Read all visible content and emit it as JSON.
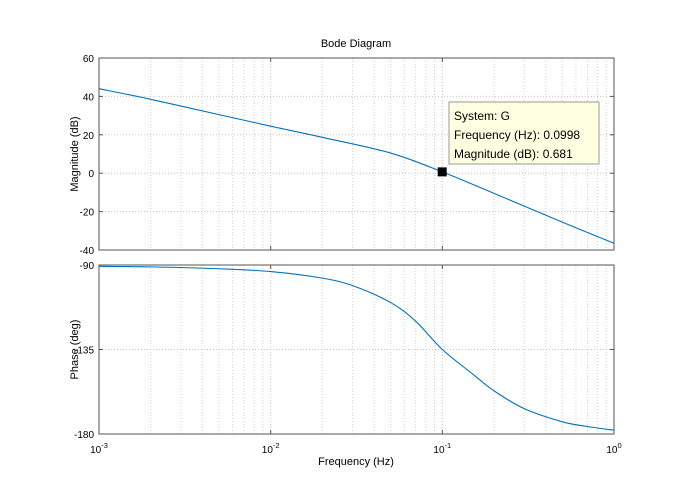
{
  "chart_data": {
    "type": "line",
    "title": "Bode Diagram",
    "xlabel": "Frequency  (Hz)",
    "x_scale": "log",
    "xlim": [
      0.001,
      1
    ],
    "x_ticks": [
      {
        "value": 0.001,
        "base": "10",
        "exp": "-3"
      },
      {
        "value": 0.01,
        "base": "10",
        "exp": "-2"
      },
      {
        "value": 0.1,
        "base": "10",
        "exp": "-1"
      },
      {
        "value": 1,
        "base": "10",
        "exp": "0"
      }
    ],
    "grid": true,
    "series_color": "#0072bd",
    "panels": [
      {
        "id": "magnitude",
        "ylabel": "Magnitude (dB)",
        "ylim": [
          -40,
          60
        ],
        "y_ticks": [
          "60",
          "40",
          "20",
          "0",
          "-20",
          "-40"
        ],
        "y_tick_values": [
          60,
          40,
          20,
          0,
          -20,
          -40
        ],
        "series": {
          "name": "G",
          "x": [
            0.001,
            0.002,
            0.005,
            0.01,
            0.02,
            0.05,
            0.0998,
            0.2,
            0.5,
            1
          ],
          "y": [
            44,
            38.5,
            30.5,
            24.5,
            18.7,
            10.5,
            0.681,
            -10.5,
            -25.5,
            -36.5
          ]
        }
      },
      {
        "id": "phase",
        "ylabel": "Phase (deg)",
        "ylim": [
          -180,
          -90
        ],
        "y_ticks": [
          "-90",
          "-135",
          "-180"
        ],
        "y_tick_values": [
          -90,
          -135,
          -180
        ],
        "series": {
          "name": "G",
          "x": [
            0.001,
            0.002,
            0.005,
            0.01,
            0.02,
            0.03,
            0.05,
            0.07,
            0.1,
            0.15,
            0.2,
            0.3,
            0.5,
            0.7,
            1
          ],
          "y": [
            -90.7,
            -91.0,
            -92.0,
            -93.5,
            -97.0,
            -101.0,
            -110.0,
            -120.0,
            -135.0,
            -148.0,
            -157.0,
            -166.5,
            -173.5,
            -176.0,
            -178.0
          ]
        }
      }
    ],
    "datatip": {
      "x": 0.0998,
      "y": 0.681,
      "lines": [
        "System: G",
        "Frequency (Hz): 0.0998",
        "Magnitude (dB): 0.681"
      ]
    }
  }
}
